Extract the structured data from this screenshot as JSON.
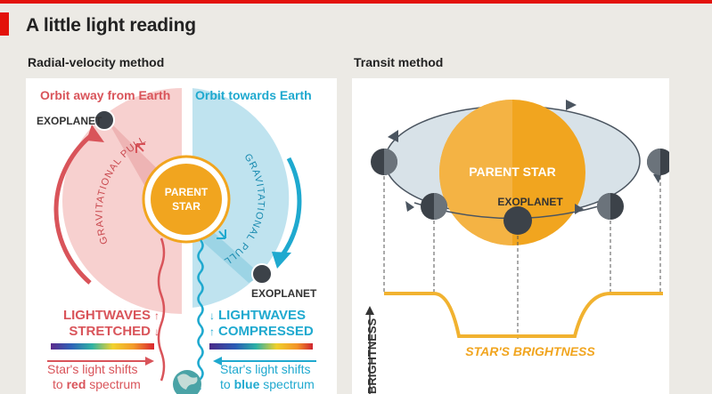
{
  "header": {
    "title": "A little light reading"
  },
  "radial": {
    "title": "Radial-velocity method",
    "orbit_away": "Orbit away from Earth",
    "orbit_towards": "Orbit towards Earth",
    "exoplanet_top": "EXOPLANET",
    "exoplanet_bottom": "EXOPLANET",
    "grav_pull_left": "GRAVITATIONAL PULL",
    "grav_pull_right": "GRAVITATIONAL PULL",
    "star_line1": "PARENT",
    "star_line2": "STAR",
    "lightwaves_left_1": "LIGHTWAVES",
    "lightwaves_left_2": "STRETCHED",
    "lightwaves_right_1": "LIGHTWAVES",
    "lightwaves_right_2": "COMPRESSED",
    "shift_left_1": "Star's light shifts",
    "shift_left_2a": "to ",
    "shift_left_2b": "red",
    "shift_left_2c": " spectrum",
    "shift_right_1": "Star's light shifts",
    "shift_right_2a": "to ",
    "shift_right_2b": "blue",
    "shift_right_2c": " spectrum"
  },
  "transit": {
    "title": "Transit method",
    "star_label": "PARENT STAR",
    "exoplanet": "EXOPLANET",
    "brightness_axis": "BRIGHTNESS",
    "curve_label": "STAR'S BRIGHTNESS"
  },
  "colors": {
    "red": "#e3120b",
    "salmon": "#d9545a",
    "cyan": "#1fa9cf",
    "orange": "#f1a51f",
    "planet": "#3c4249"
  }
}
